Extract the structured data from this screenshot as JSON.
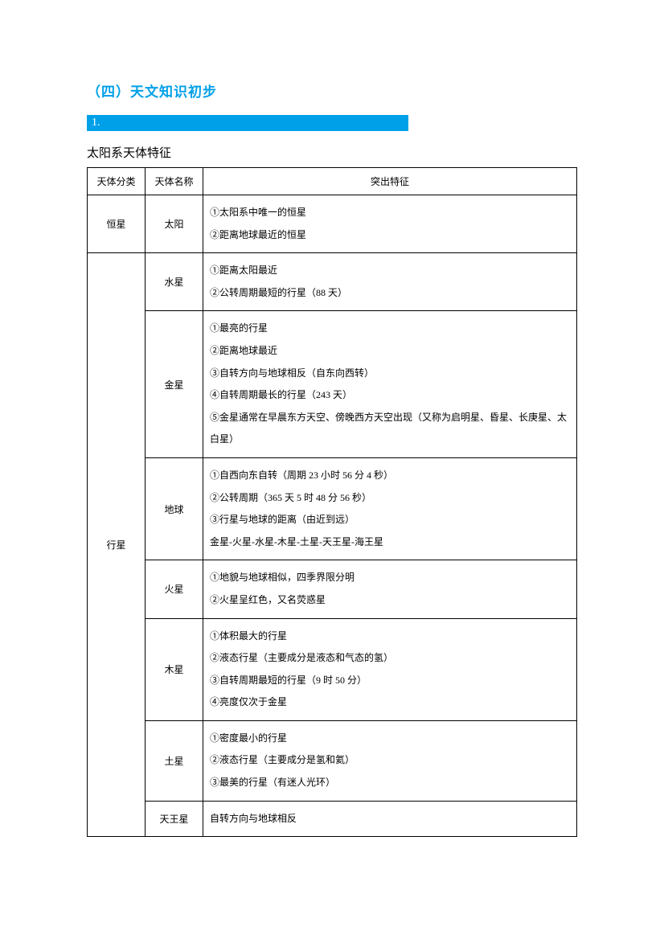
{
  "colors": {
    "accent": "#00a0e9",
    "text": "#000000",
    "bg": "#ffffff"
  },
  "heading": "（四）天文知识初步",
  "section_number": "1.",
  "subtitle": "太阳系天体特征",
  "table": {
    "headers": [
      "天体分类",
      "天体名称",
      "突出特征"
    ],
    "groups": [
      {
        "category": "恒星",
        "bodies": [
          {
            "name": "太阳",
            "features": [
              "①太阳系中唯一的恒星",
              "②距离地球最近的恒星"
            ]
          }
        ]
      },
      {
        "category": "行星",
        "bodies": [
          {
            "name": "水星",
            "features": [
              "①距离太阳最近",
              "②公转周期最短的行星（88 天）"
            ]
          },
          {
            "name": "金星",
            "features": [
              "①最亮的行星",
              "②距离地球最近",
              "③自转方向与地球相反（自东向西转）",
              "④自转周期最长的行星（243 天）",
              "⑤金星通常在早晨东方天空、傍晚西方天空出现（又称为启明星、昏星、长庚星、太白星）"
            ]
          },
          {
            "name": "地球",
            "features": [
              "①自西向东自转（周期 23 小时 56 分 4 秒）",
              "②公转周期（365 天 5 时 48 分 56 秒）",
              "③行星与地球的距离（由近到远）",
              "金星-火星-水星-木星-土星-天王星-海王星"
            ]
          },
          {
            "name": "火星",
            "features": [
              "①地貌与地球相似，四季界限分明",
              "②火星呈红色，又名荧惑星"
            ]
          },
          {
            "name": "木星",
            "features": [
              "①体积最大的行星",
              "②液态行星（主要成分是液态和气态的氢）",
              "③自转周期最短的行星（9 时 50 分）",
              "④亮度仅次于金星"
            ]
          },
          {
            "name": "土星",
            "features": [
              "①密度最小的行星",
              "②液态行星（主要成分是氢和氦）",
              "③最美的行星（有迷人光环）"
            ]
          },
          {
            "name": "天王星",
            "features": [
              "自转方向与地球相反"
            ]
          }
        ]
      }
    ]
  }
}
